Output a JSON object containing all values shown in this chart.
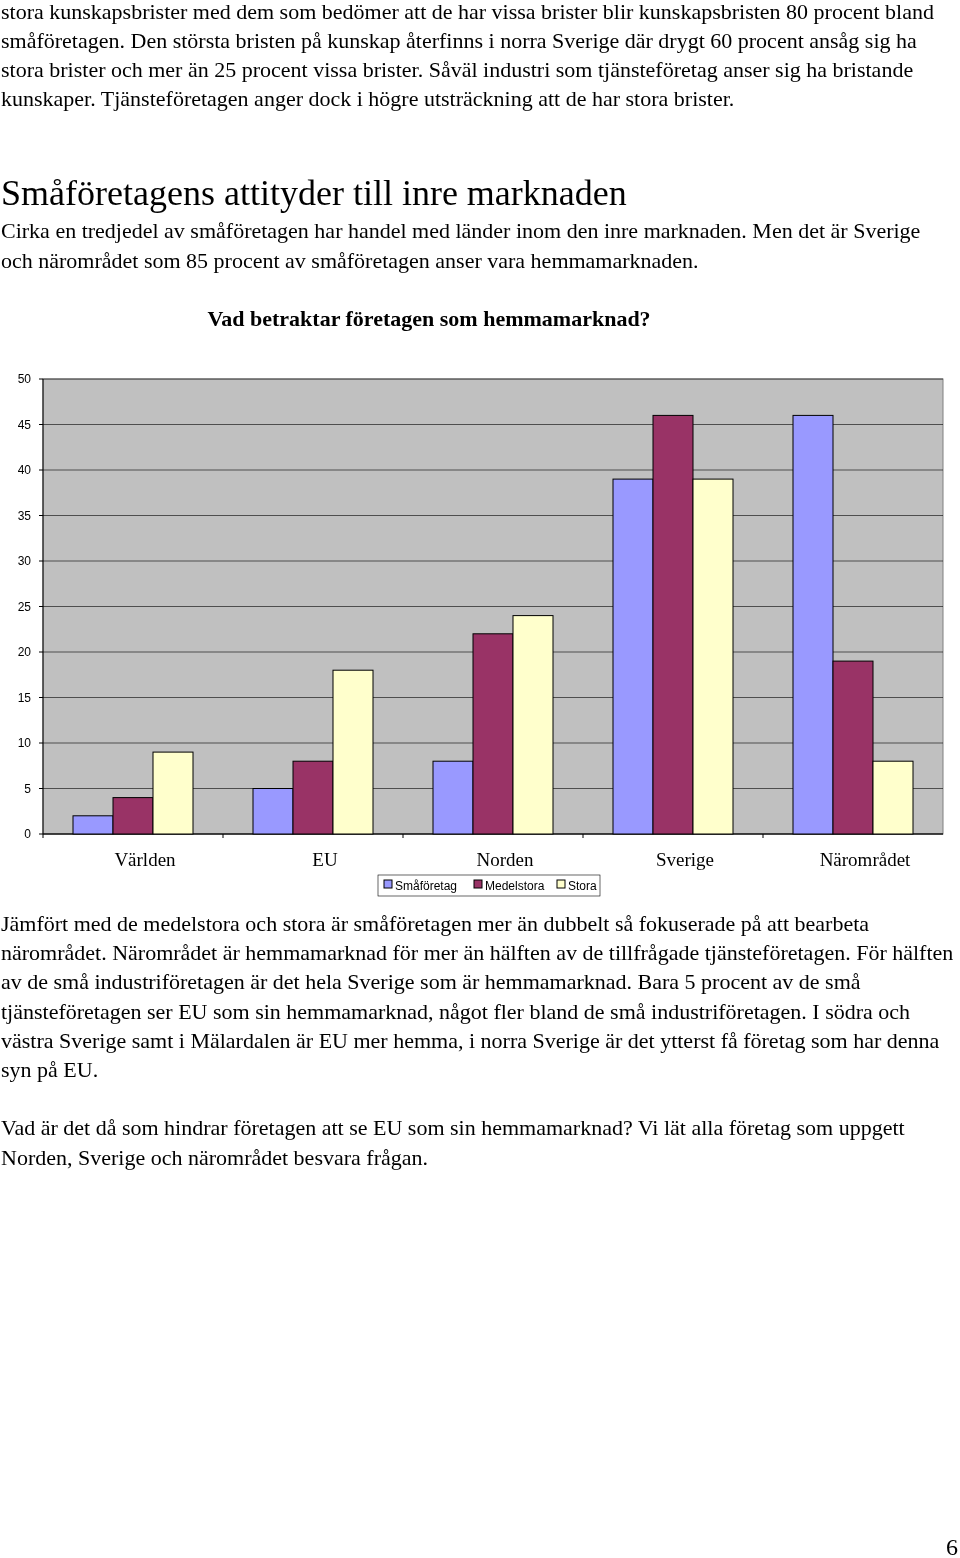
{
  "chart_data": {
    "type": "bar",
    "title": "Vad betraktar företagen som hemmamarknad?",
    "categories": [
      "Världen",
      "EU",
      "Norden",
      "Sverige",
      "Närområdet"
    ],
    "series": [
      {
        "name": "Småföretag",
        "color": "#9999ff",
        "values": [
          2,
          5,
          8,
          39,
          46
        ]
      },
      {
        "name": "Medelstora",
        "color": "#993366",
        "values": [
          4,
          8,
          22,
          46,
          19
        ]
      },
      {
        "name": "Stora",
        "color": "#ffffcc",
        "values": [
          9,
          18,
          24,
          39,
          8
        ]
      }
    ],
    "ylim": [
      0,
      50
    ],
    "yticks": [
      0,
      5,
      10,
      15,
      20,
      25,
      30,
      35,
      40,
      45,
      50
    ],
    "grid": "y",
    "legend": "bottom",
    "annotations": [
      "stora kunskapsbrister med dem som bedömer att de har vissa brister blir kunskapsbristen 80 procent bland småföretagen. Den största bristen på kunskap återfinns i norra Sverige där drygt 60 procent ansåg sig ha stora brister och mer än 25 procent vissa brister. Såväl industri som tjänsteföretag anser sig ha bristande kunskaper. Tjänsteföretagen anger dock i högre utsträckning att de har stora brister.",
      "Småföretagens attityder till inre marknaden",
      "Cirka en tredjedel av småföretagen har handel med länder inom den inre marknaden. Men det är Sverige och närområdet som 85 procent av småföretagen anser vara hemmamarknaden.",
      "Jämfört med de medelstora och stora är småföretagen mer än dubbelt så fokuserade på att bearbeta närområdet. Närområdet är hemmamarknad för mer än hälften av de tillfrågade tjänsteföretagen. För hälften av de små industriföretagen är det hela Sverige som är hemmamarknad. Bara 5 procent av de små tjänsteföretagen ser EU som sin hemmamarknad, något fler bland de små industriföretagen. I södra och västra Sverige samt i Mälardalen är EU mer hemma, i norra Sverige är det ytterst få företag som har denna syn på EU.",
      "Vad är det då som hindrar företagen att se EU som sin hemmamarknad? Vi lät alla företag som uppgett Norden, Sverige och närområdet besvara frågan.",
      "6"
    ]
  }
}
